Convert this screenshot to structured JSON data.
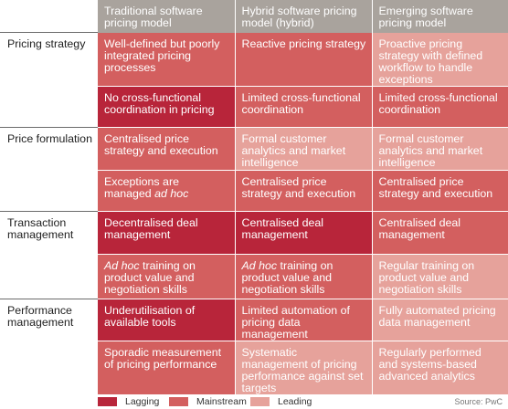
{
  "colors": {
    "header": "#a9a39d",
    "lagging": "#b8253a",
    "mainstream": "#d35f5f",
    "leading": "#e6a29b"
  },
  "columns": [
    "Traditional software pricing model",
    "Hybrid software pricing model (hybrid)",
    "Emerging software pricing model"
  ],
  "sections": [
    {
      "label": "Pricing strategy",
      "rows": [
        [
          {
            "text": "Well-defined but poorly integrated pricing processes",
            "level": "mainstream"
          },
          {
            "text": "Reactive pricing strategy",
            "level": "mainstream"
          },
          {
            "text": "Proactive pricing strategy with defined workflow to handle exceptions",
            "level": "leading"
          }
        ],
        [
          {
            "text": "No cross-functional coordination in pricing",
            "level": "lagging"
          },
          {
            "text": "Limited cross-functional coordination",
            "level": "mainstream"
          },
          {
            "text": "Limited cross-functional coordination",
            "level": "mainstream"
          }
        ]
      ]
    },
    {
      "label": "Price formulation",
      "rows": [
        [
          {
            "text": "Centralised price strategy and execution",
            "level": "mainstream"
          },
          {
            "text": "Formal customer analytics and market intelligence",
            "level": "leading"
          },
          {
            "text": "Formal customer analytics and market intelligence",
            "level": "leading"
          }
        ],
        [
          {
            "text": "Exceptions are managed",
            "italic": "ad hoc",
            "level": "mainstream"
          },
          {
            "text": "Centralised price strategy and execution",
            "level": "mainstream"
          },
          {
            "text": "Centralised price strategy and execution",
            "level": "mainstream"
          }
        ]
      ]
    },
    {
      "label": "Transaction management",
      "rows": [
        [
          {
            "text": "Decentralised deal management",
            "level": "lagging"
          },
          {
            "text": "Centralised deal management",
            "level": "lagging"
          },
          {
            "text": "Centralised deal management",
            "level": "mainstream"
          }
        ],
        [
          {
            "italic": "Ad hoc",
            "text": "training on product value and negotiation skills",
            "level": "mainstream"
          },
          {
            "italic": "Ad hoc",
            "text": "training on product value and negotiation skills",
            "level": "mainstream"
          },
          {
            "text": "Regular training on product value and negotiation skills",
            "level": "leading"
          }
        ]
      ]
    },
    {
      "label": "Performance management",
      "rows": [
        [
          {
            "text": "Underutilisation of available tools",
            "level": "lagging"
          },
          {
            "text": "Limited automation of pricing data management",
            "level": "mainstream"
          },
          {
            "text": "Fully automated pricing data management",
            "level": "leading"
          }
        ],
        [
          {
            "text": "Sporadic measurement of pricing performance",
            "level": "mainstream"
          },
          {
            "text": "Systematic management of pricing performance against set targets",
            "level": "leading"
          },
          {
            "text": "Regularly performed and systems-based advanced analytics",
            "level": "leading"
          }
        ]
      ]
    }
  ],
  "legend": [
    {
      "label": "Lagging",
      "level": "lagging"
    },
    {
      "label": "Mainstream",
      "level": "mainstream"
    },
    {
      "label": "Leading",
      "level": "leading"
    }
  ],
  "source": "Source: PwC"
}
